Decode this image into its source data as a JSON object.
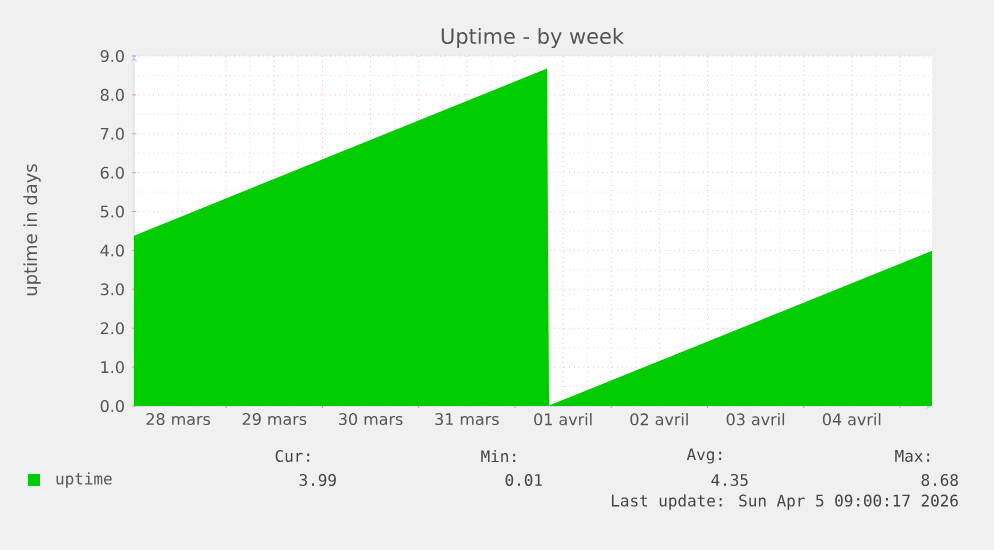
{
  "chart_data": {
    "type": "area",
    "title": "Uptime - by week",
    "ylabel": "uptime in days",
    "xlim": [
      "2026-03-28T01:00",
      "2026-04-05T08:00"
    ],
    "xticks": [
      {
        "value": "2026-03-29T00:00",
        "label": null
      },
      {
        "value": "2026-03-30T00:00",
        "label": null
      },
      {
        "value": "2026-03-31T00:00",
        "label": null
      },
      {
        "value": "2026-04-01T00:00",
        "label": null
      },
      {
        "value": "2026-04-02T00:00",
        "label": null
      },
      {
        "value": "2026-04-03T00:00",
        "label": null
      },
      {
        "value": "2026-04-04T00:00",
        "label": null
      },
      {
        "value": "2026-04-05T00:00",
        "label": null
      },
      {
        "value": "2026-03-28T12:00",
        "label": "28 mars"
      },
      {
        "value": "2026-03-29T12:00",
        "label": "29 mars"
      },
      {
        "value": "2026-03-30T12:00",
        "label": "30 mars"
      },
      {
        "value": "2026-03-31T12:00",
        "label": "31 mars"
      },
      {
        "value": "2026-04-01T12:00",
        "label": "01 avril"
      },
      {
        "value": "2026-04-02T12:00",
        "label": "02 avril"
      },
      {
        "value": "2026-04-03T12:00",
        "label": "03 avril"
      },
      {
        "value": "2026-04-04T12:00",
        "label": "04 avril"
      }
    ],
    "ylim": [
      0,
      9
    ],
    "yticks": [
      {
        "value": 0,
        "label": "0.0"
      },
      {
        "value": 1,
        "label": "1.0"
      },
      {
        "value": 2,
        "label": "2.0"
      },
      {
        "value": 3,
        "label": "3.0"
      },
      {
        "value": 4,
        "label": "4.0"
      },
      {
        "value": 5,
        "label": "5.0"
      },
      {
        "value": 6,
        "label": "6.0"
      },
      {
        "value": 7,
        "label": "7.0"
      },
      {
        "value": 8,
        "label": "8.0"
      },
      {
        "value": 9,
        "label": "9.0"
      }
    ],
    "x": [
      "2026-03-28T01:00",
      "2026-04-01T08:00",
      "2026-04-01T08:30",
      "2026-04-05T08:00"
    ],
    "series": [
      {
        "name": "uptime",
        "color": "#00cc00",
        "values": [
          4.38,
          8.68,
          0.01,
          3.99
        ]
      }
    ],
    "grid": true,
    "legend": "bottom left",
    "annotations": [
      "Cur:",
      "Min:",
      "Avg:",
      "Max:",
      "3.99",
      "0.01",
      "4.35",
      "8.68",
      "Last update: Sun Apr  5 09:00:17 2026"
    ]
  }
}
